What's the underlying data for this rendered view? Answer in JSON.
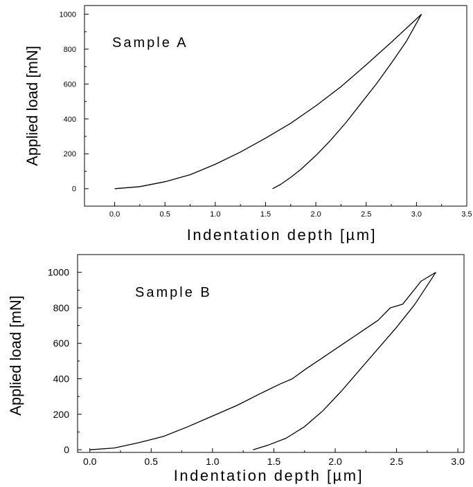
{
  "chart_data": [
    {
      "type": "line",
      "annotation": "Sample A",
      "xlabel": "Indentation depth [µm]",
      "ylabel": "Applied load [mN]",
      "xlim": [
        -0.3,
        3.5
      ],
      "ylim": [
        -100,
        1050
      ],
      "x_ticks": [
        "0.0",
        "0.5",
        "1.0",
        "1.5",
        "2.0",
        "2.5",
        "3.0",
        "3.5"
      ],
      "y_ticks": [
        "0",
        "200",
        "400",
        "600",
        "800",
        "1000"
      ],
      "series": [
        {
          "x": [
            0.0,
            0.25,
            0.5,
            0.75,
            1.0,
            1.25,
            1.5,
            1.75,
            2.0,
            2.25,
            2.5,
            2.75,
            3.05
          ],
          "y": [
            0,
            12,
            40,
            80,
            140,
            210,
            290,
            375,
            475,
            585,
            710,
            840,
            1000
          ]
        },
        {
          "x": [
            1.57,
            1.65,
            1.75,
            1.85,
            2.0,
            2.15,
            2.3,
            2.45,
            2.6,
            2.75,
            2.9,
            3.05
          ],
          "y": [
            0,
            25,
            65,
            110,
            190,
            280,
            380,
            490,
            600,
            720,
            845,
            1000
          ]
        }
      ]
    },
    {
      "type": "line",
      "annotation": "Sample B",
      "xlabel": "Indentation depth [µm]",
      "ylabel": "Applied load [mN]",
      "xlim": [
        -0.1,
        3.05
      ],
      "ylim": [
        -15,
        1100
      ],
      "x_ticks": [
        "0.0",
        "0.5",
        "1.0",
        "1.5",
        "2.0",
        "2.5",
        "3.0"
      ],
      "y_ticks": [
        "0",
        "200",
        "400",
        "600",
        "800",
        "1000"
      ],
      "series": [
        {
          "x": [
            0.0,
            0.2,
            0.4,
            0.6,
            0.8,
            1.0,
            1.2,
            1.4,
            1.55,
            1.65,
            1.75,
            1.9,
            2.05,
            2.2,
            2.35,
            2.45,
            2.55,
            2.7,
            2.82
          ],
          "y": [
            0,
            10,
            40,
            75,
            130,
            190,
            250,
            320,
            370,
            400,
            450,
            520,
            590,
            660,
            730,
            800,
            820,
            950,
            1000
          ]
        },
        {
          "x": [
            1.33,
            1.45,
            1.6,
            1.75,
            1.9,
            2.05,
            2.2,
            2.35,
            2.5,
            2.65,
            2.82
          ],
          "y": [
            0,
            25,
            65,
            130,
            220,
            330,
            450,
            570,
            690,
            820,
            1000
          ]
        }
      ]
    }
  ]
}
